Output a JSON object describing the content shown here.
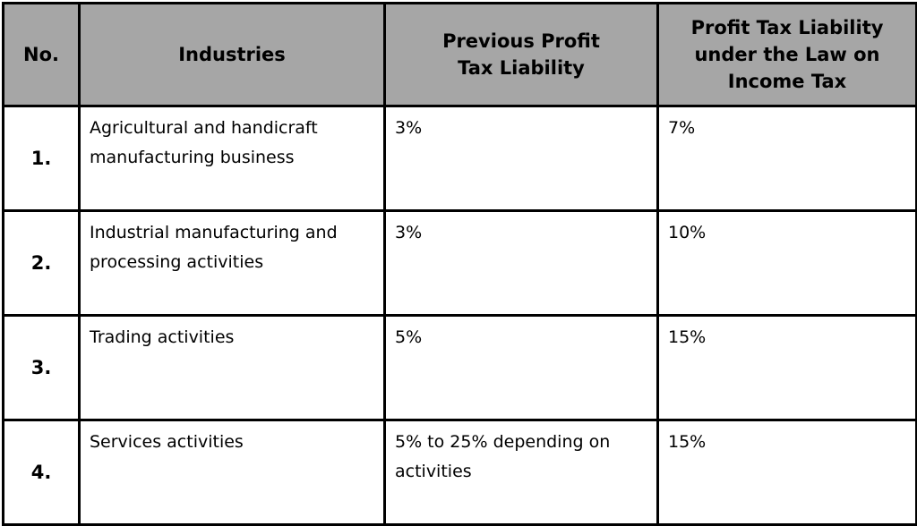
{
  "table": {
    "headers": {
      "no": "No.",
      "industries": "Industries",
      "previous": "Previous Profit Tax Liability",
      "new": "Profit Tax Liability under the Law on Income Tax"
    },
    "rows": [
      {
        "no": "1.",
        "industry": "Agricultural and handicraft manufacturing business",
        "previous": "3%",
        "new": "7%"
      },
      {
        "no": "2.",
        "industry": "Industrial manufacturing and processing activities",
        "previous": "3%",
        "new": "10%"
      },
      {
        "no": "3.",
        "industry": "Trading activities",
        "previous": "5%",
        "new": "15%"
      },
      {
        "no": "4.",
        "industry": "Services activities",
        "previous": "5% to 25% depending on activities",
        "new": "15%"
      }
    ]
  }
}
